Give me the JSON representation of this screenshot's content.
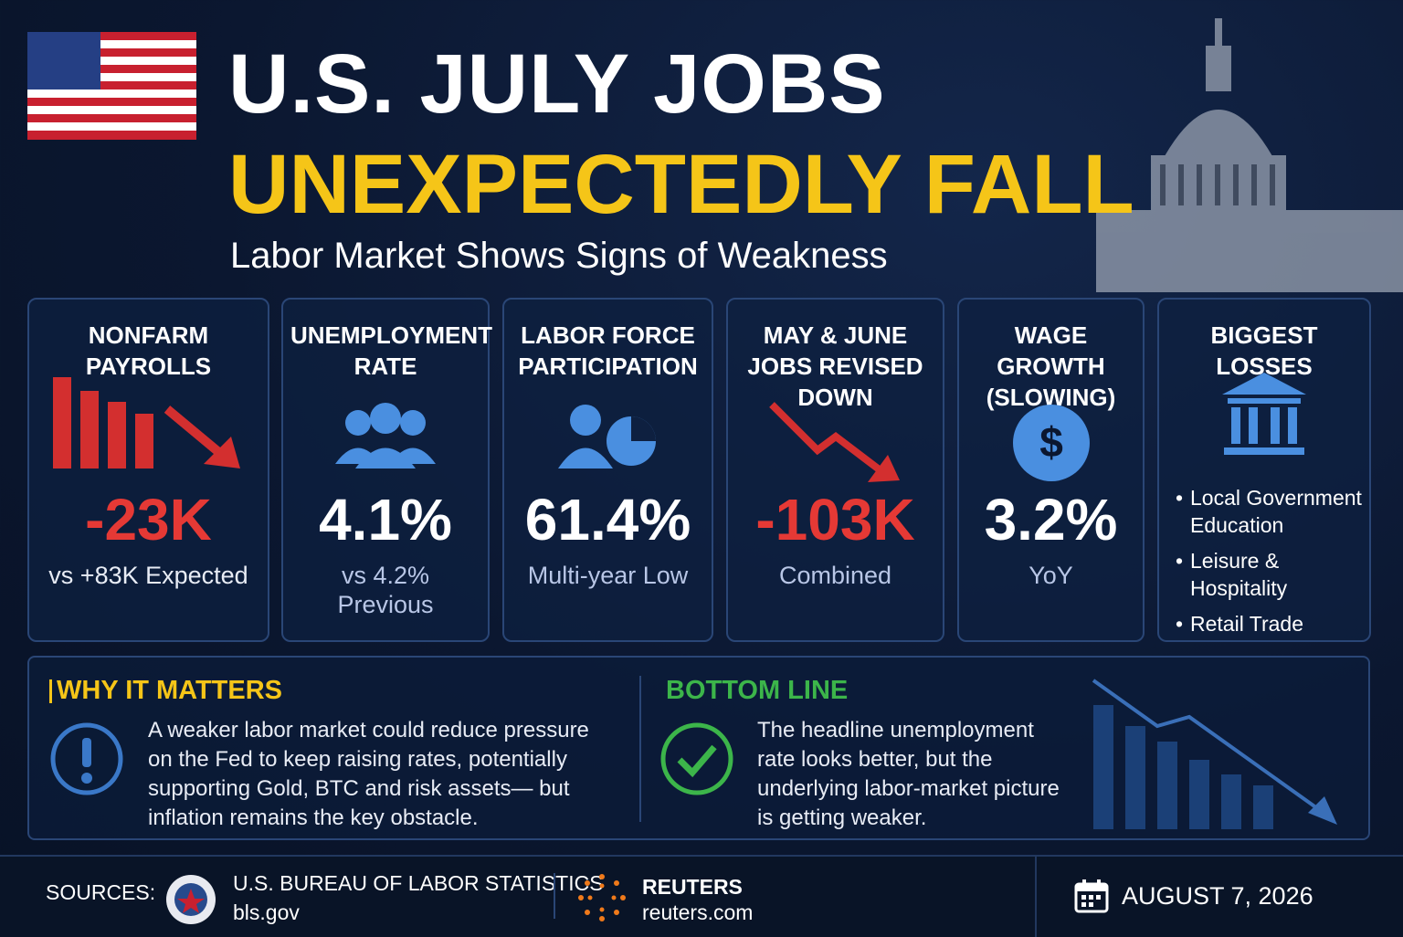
{
  "header": {
    "title_line1": "U.S. JULY JOBS",
    "title_line2": "UNEXPECTEDLY FALL",
    "subtitle": "Labor Market Shows Signs of Weakness"
  },
  "cards": [
    {
      "title": "NONFARM PAYROLLS",
      "value": "-23K",
      "note": "vs +83K Expected"
    },
    {
      "title": "UNEMPLOYMENT RATE",
      "value": "4.1%",
      "note": "vs 4.2% Previous"
    },
    {
      "title": "LABOR FORCE PARTICIPATION",
      "value": "61.4%",
      "note": "Multi-year Low"
    },
    {
      "title": "MAY & JUNE JOBS REVISED DOWN",
      "value": "-103K",
      "note": "Combined"
    },
    {
      "title": "WAGE GROWTH (SLOWING)",
      "value": "3.2%",
      "note": "YoY"
    }
  ],
  "losses": {
    "title": "BIGGEST LOSSES",
    "items": [
      "Local Government Education",
      "Leisure & Hospitality",
      "Retail Trade"
    ]
  },
  "why": {
    "title": "WHY IT MATTERS",
    "body": "A weaker labor market could reduce pressure on the Fed to keep raising rates, potentially supporting Gold, BTC and risk assets— but inflation remains the key obstacle."
  },
  "bottom": {
    "title": "BOTTOM LINE",
    "body": "The headline unemployment rate looks better, but the underlying labor-market picture is getting weaker."
  },
  "footer": {
    "sources_label": "SOURCES:",
    "sources": [
      {
        "name": "U.S. BUREAU OF LABOR STATISTICS",
        "url": "bls.gov"
      },
      {
        "name": "REUTERS",
        "url": "reuters.com"
      }
    ],
    "date": "AUGUST 7, 2026"
  }
}
